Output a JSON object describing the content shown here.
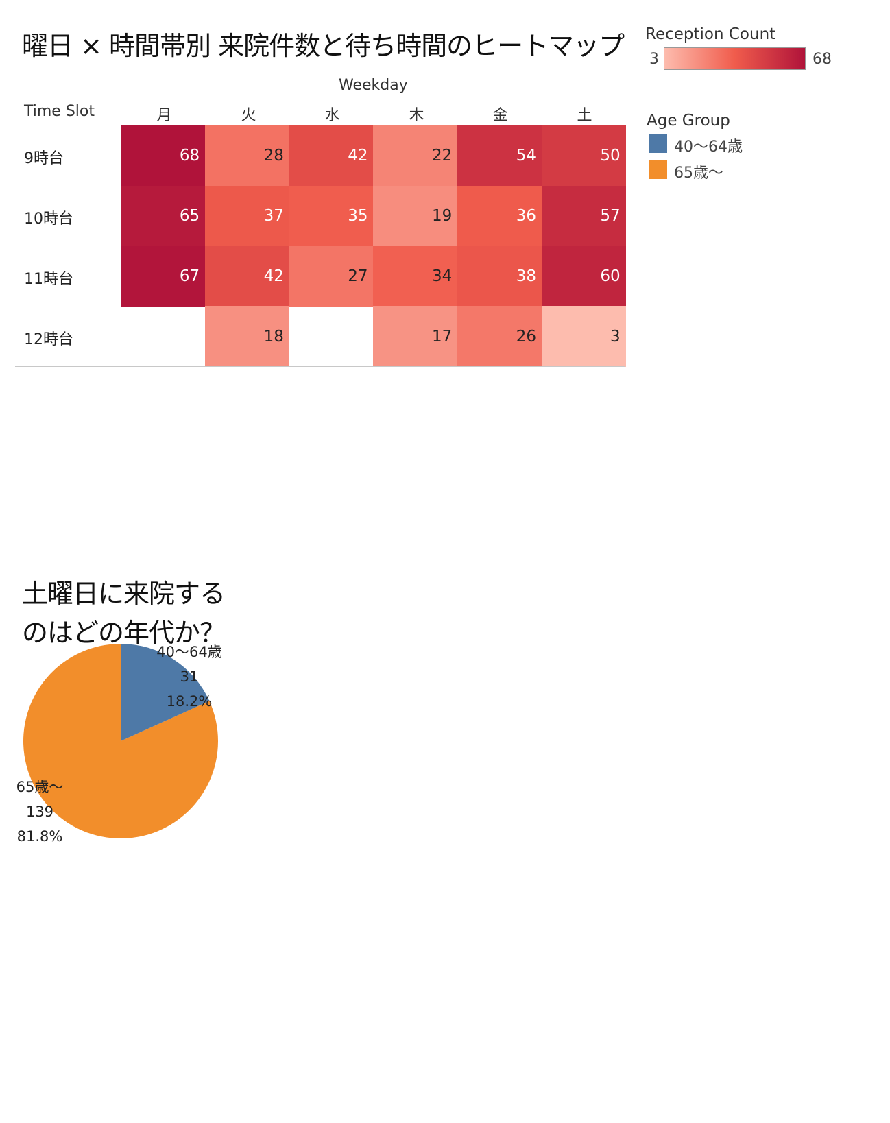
{
  "title": "曜日 × 時間帯別 来院件数と待ち時間のヒートマップ",
  "color_legend": {
    "title": "Reception Count",
    "min_label": "3",
    "max_label": "68",
    "colors": [
      "#fdbcae",
      "#f05c4c",
      "#b0133a"
    ]
  },
  "age_legend": {
    "title": "Age Group",
    "items": [
      {
        "label": "40〜64歳",
        "color": "#4e79a7"
      },
      {
        "label": "65歳〜",
        "color": "#f28e2b"
      }
    ]
  },
  "pie_title_lines": [
    "土曜日に来院する",
    "のはどの年代か？"
  ],
  "chart_data": [
    {
      "type": "heatmap",
      "title": "曜日 × 時間帯別 来院件数と待ち時間のヒートマップ",
      "xlabel": "Weekday",
      "ylabel": "Time Slot",
      "columns": [
        "月",
        "火",
        "水",
        "木",
        "金",
        "土"
      ],
      "rows": [
        "9時台",
        "10時台",
        "11時台",
        "12時台"
      ],
      "values": [
        [
          68,
          28,
          42,
          22,
          54,
          50
        ],
        [
          65,
          37,
          35,
          19,
          36,
          57
        ],
        [
          67,
          42,
          27,
          34,
          38,
          60
        ],
        [
          null,
          18,
          null,
          17,
          26,
          3
        ]
      ],
      "color_range": [
        3,
        68
      ]
    },
    {
      "type": "pie",
      "title": "土曜日に来院するのはどの年代か？",
      "slices": [
        {
          "label": "40〜64歳",
          "value": 31,
          "percent": "18.2%",
          "color": "#4e79a7"
        },
        {
          "label": "65歳〜",
          "value": 139,
          "percent": "81.8%",
          "color": "#f28e2b"
        }
      ]
    }
  ]
}
